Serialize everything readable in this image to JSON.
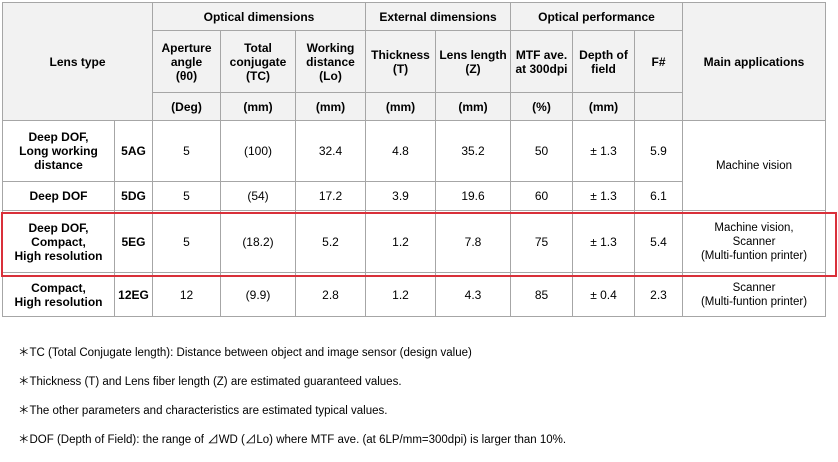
{
  "header": {
    "lens_type": "Lens type",
    "groups": {
      "optical_dimensions": "Optical dimensions",
      "external_dimensions": "External dimensions",
      "optical_performance": "Optical performance"
    },
    "main_applications": "Main applications",
    "cols": {
      "aperture": [
        "Aperture",
        "angle",
        "(θ0)"
      ],
      "tc": [
        "Total",
        "conjugate",
        "(TC)"
      ],
      "wd": [
        "Working",
        "distance",
        "(Lo)"
      ],
      "thickness": [
        "Thickness",
        "(T)"
      ],
      "length": [
        "Lens length",
        "(Z)"
      ],
      "mtf": [
        "MTF ave.",
        "at 300dpi"
      ],
      "dof": [
        "Depth of",
        "field"
      ],
      "f": "F#"
    },
    "units": {
      "aperture": "(Deg)",
      "tc": "(mm)",
      "wd": "(mm)",
      "thickness": "(mm)",
      "length": "(mm)",
      "mtf": "(%)",
      "dof": "(mm)",
      "f": ""
    }
  },
  "rows": [
    {
      "name": [
        "Deep DOF,",
        "Long working",
        "distance"
      ],
      "code": "5AG",
      "aperture": "5",
      "tc": "(100)",
      "wd": "32.4",
      "thickness": "4.8",
      "length": "35.2",
      "mtf": "50",
      "dof": "± 1.3",
      "f": "5.9"
    },
    {
      "name": [
        "Deep DOF"
      ],
      "code": "5DG",
      "aperture": "5",
      "tc": "(54)",
      "wd": "17.2",
      "thickness": "3.9",
      "length": "19.6",
      "mtf": "60",
      "dof": "± 1.3",
      "f": "6.1"
    },
    {
      "name": [
        "Deep DOF,",
        "Compact,",
        "High resolution"
      ],
      "code": "5EG",
      "aperture": "5",
      "tc": "(18.2)",
      "wd": "5.2",
      "thickness": "1.2",
      "length": "7.8",
      "mtf": "75",
      "dof": "± 1.3",
      "f": "5.4",
      "highlighted": true
    },
    {
      "name": [
        "Compact,",
        "High resolution"
      ],
      "code": "12EG",
      "aperture": "12",
      "tc": "(9.9)",
      "wd": "2.8",
      "thickness": "1.2",
      "length": "4.3",
      "mtf": "85",
      "dof": "± 0.4",
      "f": "2.3"
    }
  ],
  "applications": {
    "top": [
      "Machine vision"
    ],
    "middle": [
      "Machine vision,",
      "Scanner",
      "(Multi-funtion printer)"
    ],
    "bottom": [
      "Scanner",
      "(Multi-funtion printer)"
    ]
  },
  "notes": [
    "＊TC (Total Conjugate length): Distance between object and image sensor (design value)",
    "＊Thickness (T) and Lens fiber length (Z) are estimated guaranteed values.",
    "＊The other parameters and characteristics are estimated typical values.",
    "＊DOF (Depth of Field): the range of ⊿WD (⊿Lo) where MTF ave. (at 6LP/mm=300dpi)  is larger than 10%."
  ],
  "highlight_color": "#d9303a",
  "header_bg": "#f2f2f2"
}
